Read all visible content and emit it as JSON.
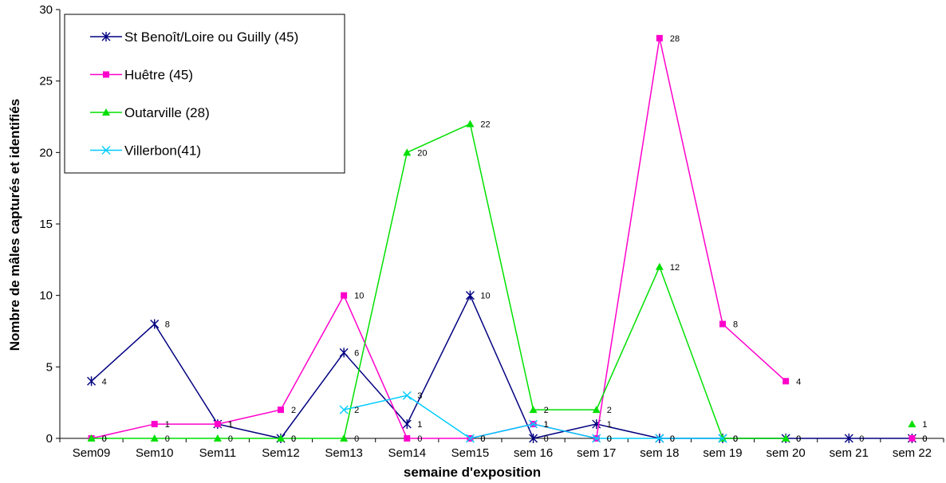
{
  "chart_data": {
    "type": "line",
    "title": "",
    "xlabel": "semaine d'exposition",
    "ylabel": "Nombre de mâles capturés et identifiés",
    "ylim": [
      0,
      30
    ],
    "yticks": [
      "0",
      "5",
      "10",
      "15",
      "20",
      "25",
      "30"
    ],
    "grid": false,
    "legend_placement": "top-left",
    "categories": [
      "Sem09",
      "Sem10",
      "Sem11",
      "Sem12",
      "Sem13",
      "Sem14",
      "Sem15",
      "sem 16",
      "sem 17",
      "sem 18",
      "sem 19",
      "sem 20",
      "sem 21",
      "sem 22"
    ],
    "series": [
      {
        "name": "St Benoît/Loire ou Guilly (45)",
        "color": "#000080",
        "marker": "asterisk",
        "values": [
          4,
          8,
          1,
          0,
          6,
          1,
          10,
          0,
          1,
          0,
          0,
          0,
          0,
          0
        ]
      },
      {
        "name": "Huêtre (45)",
        "color": "#ff00cc",
        "marker": "square",
        "values": [
          0,
          1,
          1,
          2,
          10,
          0,
          0,
          1,
          0,
          28,
          8,
          4,
          null,
          0
        ]
      },
      {
        "name": "Outarville (28)",
        "color": "#00e000",
        "marker": "triangle",
        "values": [
          0,
          0,
          0,
          0,
          0,
          20,
          22,
          2,
          2,
          12,
          0,
          0,
          null,
          1
        ]
      },
      {
        "name": "Villerbon(41)",
        "color": "#00ccff",
        "marker": "x",
        "values": [
          null,
          null,
          null,
          null,
          2,
          3,
          0,
          1,
          0,
          0,
          0,
          null,
          null,
          null
        ]
      }
    ]
  }
}
